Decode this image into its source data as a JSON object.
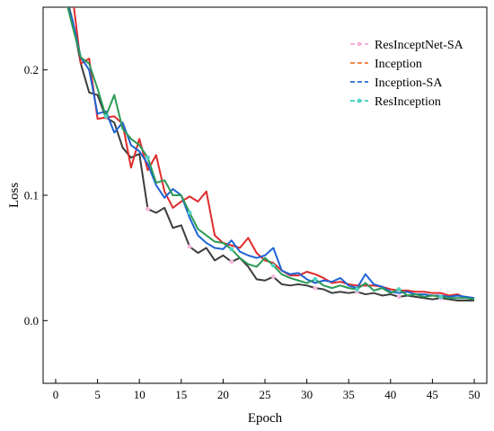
{
  "chart_data": {
    "type": "line",
    "xlabel": "Epoch",
    "ylabel": "Loss",
    "xlim": [
      -1.5,
      51.5
    ],
    "ylim": [
      -0.05,
      0.25
    ],
    "xticks": [
      0,
      5,
      10,
      15,
      20,
      25,
      30,
      35,
      40,
      45,
      50
    ],
    "yticks": [
      0.0,
      0.1,
      0.2
    ],
    "ytick_labels": [
      "0.0",
      "0.1",
      "0.2"
    ],
    "grid": false,
    "legend_position": "top-right",
    "x": [
      1,
      2,
      3,
      4,
      5,
      6,
      7,
      8,
      9,
      10,
      11,
      12,
      13,
      14,
      15,
      16,
      17,
      18,
      19,
      20,
      21,
      22,
      23,
      24,
      25,
      26,
      27,
      28,
      29,
      30,
      31,
      32,
      33,
      34,
      35,
      36,
      37,
      38,
      39,
      40,
      41,
      42,
      43,
      44,
      45,
      46,
      47,
      48,
      49,
      50
    ],
    "series": [
      {
        "name": "ResInceptNet-SA",
        "color": "#3d3d3d",
        "marker_color": "#f4b6d8",
        "marker_every": 5,
        "values": [
          0.265,
          0.24,
          0.205,
          0.182,
          0.18,
          0.162,
          0.158,
          0.138,
          0.13,
          0.133,
          0.089,
          0.086,
          0.09,
          0.074,
          0.076,
          0.059,
          0.054,
          0.058,
          0.048,
          0.052,
          0.047,
          0.05,
          0.043,
          0.033,
          0.032,
          0.035,
          0.029,
          0.028,
          0.029,
          0.028,
          0.026,
          0.025,
          0.022,
          0.023,
          0.022,
          0.023,
          0.021,
          0.022,
          0.02,
          0.021,
          0.019,
          0.02,
          0.019,
          0.018,
          0.017,
          0.018,
          0.017,
          0.016,
          0.016,
          0.016
        ]
      },
      {
        "name": "Inception",
        "color": "#e02b2b",
        "marker_color": "#f4874f",
        "marker_every": 0,
        "values": [
          0.262,
          0.26,
          0.205,
          0.209,
          0.161,
          0.162,
          0.163,
          0.157,
          0.122,
          0.145,
          0.12,
          0.132,
          0.103,
          0.09,
          0.095,
          0.099,
          0.095,
          0.103,
          0.068,
          0.062,
          0.06,
          0.058,
          0.066,
          0.054,
          0.048,
          0.046,
          0.04,
          0.036,
          0.036,
          0.039,
          0.037,
          0.034,
          0.03,
          0.031,
          0.029,
          0.028,
          0.028,
          0.028,
          0.027,
          0.025,
          0.024,
          0.024,
          0.023,
          0.023,
          0.022,
          0.022,
          0.02,
          0.021,
          0.018,
          0.018
        ]
      },
      {
        "name": "Inception-SA",
        "color": "#1f63d4",
        "marker_color": "#3f7fe0",
        "marker_every": 0,
        "values": [
          0.26,
          0.24,
          0.21,
          0.2,
          0.165,
          0.167,
          0.15,
          0.158,
          0.14,
          0.135,
          0.125,
          0.108,
          0.098,
          0.105,
          0.1,
          0.082,
          0.068,
          0.062,
          0.058,
          0.057,
          0.064,
          0.055,
          0.052,
          0.05,
          0.052,
          0.058,
          0.04,
          0.037,
          0.038,
          0.033,
          0.03,
          0.032,
          0.031,
          0.034,
          0.028,
          0.026,
          0.037,
          0.029,
          0.027,
          0.023,
          0.022,
          0.023,
          0.021,
          0.021,
          0.02,
          0.02,
          0.019,
          0.02,
          0.019,
          0.018
        ]
      },
      {
        "name": "ResInception",
        "color": "#2a9a56",
        "marker_color": "#4fd4c4",
        "marker_every": 5,
        "values": [
          0.262,
          0.235,
          0.21,
          0.205,
          0.185,
          0.163,
          0.18,
          0.153,
          0.145,
          0.14,
          0.13,
          0.11,
          0.112,
          0.1,
          0.1,
          0.086,
          0.073,
          0.068,
          0.063,
          0.062,
          0.057,
          0.05,
          0.045,
          0.043,
          0.05,
          0.044,
          0.037,
          0.034,
          0.032,
          0.03,
          0.033,
          0.028,
          0.026,
          0.028,
          0.026,
          0.025,
          0.03,
          0.024,
          0.026,
          0.022,
          0.025,
          0.02,
          0.021,
          0.019,
          0.02,
          0.019,
          0.018,
          0.018,
          0.018,
          0.017
        ]
      }
    ]
  }
}
